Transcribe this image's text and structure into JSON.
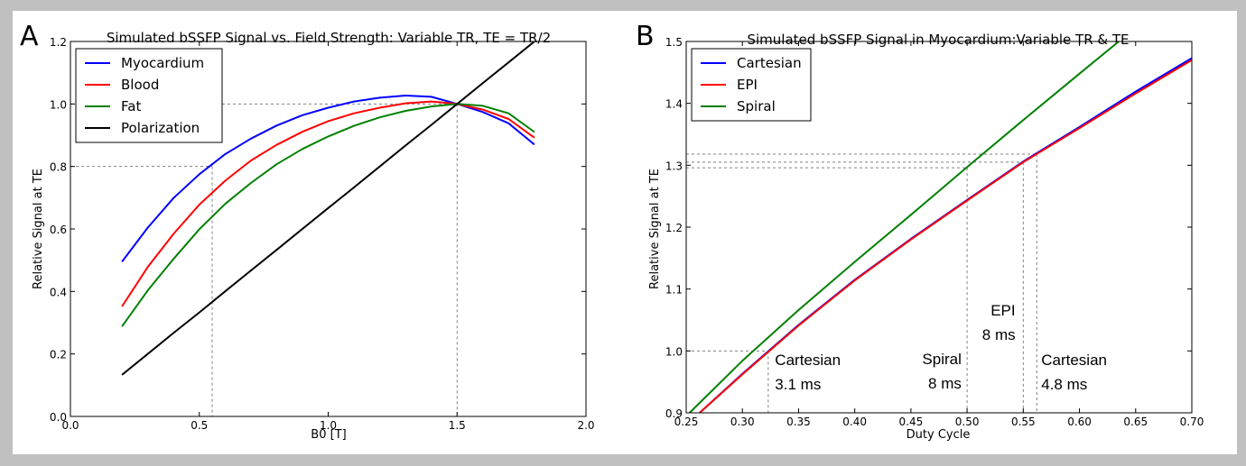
{
  "chart_data": [
    {
      "panel": "A",
      "type": "line",
      "title": "Simulated bSSFP Signal vs. Field Strength: Variable TR, TE = TR/2",
      "xlabel": "B0 [T]",
      "ylabel": "Relative Signal at TE",
      "xlim": [
        0.0,
        2.0
      ],
      "ylim": [
        0.0,
        1.2
      ],
      "xticks": [
        "0.0",
        "0.5",
        "1.0",
        "1.5",
        "2.0"
      ],
      "yticks": [
        "0.0",
        "0.2",
        "0.4",
        "0.6",
        "0.8",
        "1.0",
        "1.2"
      ],
      "legend_position": "top-left",
      "x": [
        0.2,
        0.3,
        0.4,
        0.5,
        0.6,
        0.7,
        0.8,
        0.9,
        1.0,
        1.1,
        1.2,
        1.3,
        1.4,
        1.5,
        1.6,
        1.7,
        1.8
      ],
      "series": [
        {
          "name": "Myocardium",
          "color": "#0000ff",
          "values": [
            0.495,
            0.604,
            0.699,
            0.775,
            0.839,
            0.889,
            0.931,
            0.964,
            0.988,
            1.008,
            1.02,
            1.027,
            1.023,
            1.0,
            0.974,
            0.938,
            0.87
          ]
        },
        {
          "name": "Blood",
          "color": "#ff0000",
          "values": [
            0.352,
            0.478,
            0.584,
            0.678,
            0.754,
            0.819,
            0.869,
            0.911,
            0.945,
            0.97,
            0.988,
            1.002,
            1.008,
            1.0,
            0.982,
            0.952,
            0.892
          ]
        },
        {
          "name": "Fat",
          "color": "#008000",
          "values": [
            0.288,
            0.403,
            0.504,
            0.599,
            0.68,
            0.747,
            0.807,
            0.856,
            0.896,
            0.93,
            0.957,
            0.978,
            0.992,
            1.0,
            0.994,
            0.97,
            0.91
          ]
        },
        {
          "name": "Polarization",
          "color": "#000000",
          "values": [
            0.133,
            0.2,
            0.267,
            0.333,
            0.4,
            0.467,
            0.533,
            0.6,
            0.667,
            0.733,
            0.8,
            0.867,
            0.933,
            1.0,
            1.067,
            1.133,
            1.2
          ]
        }
      ],
      "reference_lines": [
        {
          "x": 0.55,
          "y": 0.8
        },
        {
          "x": 1.5,
          "y": 1.0
        }
      ]
    },
    {
      "panel": "B",
      "type": "line",
      "title": "Simulated bSSFP Signal in Myocardium:Variable TR & TE",
      "xlabel": "Duty Cycle",
      "ylabel": "Relative Signal at TE",
      "xlim": [
        0.25,
        0.7
      ],
      "ylim": [
        0.9,
        1.5
      ],
      "xticks": [
        "0.25",
        "0.30",
        "0.35",
        "0.40",
        "0.45",
        "0.50",
        "0.55",
        "0.60",
        "0.65",
        "0.70"
      ],
      "yticks": [
        "0.9",
        "1.0",
        "1.1",
        "1.2",
        "1.3",
        "1.4",
        "1.5"
      ],
      "legend_position": "top-left",
      "series": [
        {
          "name": "Cartesian",
          "color": "#0000ff",
          "x": [
            0.262,
            0.3,
            0.35,
            0.4,
            0.45,
            0.5,
            0.55,
            0.6,
            0.65,
            0.7
          ],
          "values": [
            0.9,
            0.963,
            1.042,
            1.115,
            1.181,
            1.244,
            1.306,
            1.362,
            1.419,
            1.473
          ]
        },
        {
          "name": "EPI",
          "color": "#ff0000",
          "x": [
            0.262,
            0.3,
            0.35,
            0.4,
            0.45,
            0.5,
            0.55,
            0.6,
            0.65,
            0.7
          ],
          "values": [
            0.9,
            0.962,
            1.041,
            1.114,
            1.18,
            1.243,
            1.305,
            1.36,
            1.416,
            1.47
          ]
        },
        {
          "name": "Spiral",
          "color": "#008000",
          "x": [
            0.253,
            0.3,
            0.35,
            0.4,
            0.45,
            0.5,
            0.55,
            0.6,
            0.635
          ],
          "values": [
            0.9,
            0.984,
            1.066,
            1.144,
            1.22,
            1.297,
            1.373,
            1.448,
            1.5
          ]
        }
      ],
      "reference_lines": [
        {
          "x": 0.323,
          "y": 1.0
        },
        {
          "x": 0.5,
          "y": 1.296
        },
        {
          "x": 0.55,
          "y": 1.305
        },
        {
          "x": 0.562,
          "y": 1.318
        }
      ],
      "annotations": [
        {
          "lines": [
            "Cartesian",
            "3.1 ms"
          ],
          "x": 0.329,
          "y": 0.977,
          "align": "start"
        },
        {
          "lines": [
            "Spiral",
            "8 ms"
          ],
          "x": 0.495,
          "y": 0.979,
          "align": "end"
        },
        {
          "lines": [
            "EPI",
            "8 ms"
          ],
          "x": 0.543,
          "y": 1.057,
          "align": "end"
        },
        {
          "lines": [
            "Cartesian",
            "4.8 ms"
          ],
          "x": 0.566,
          "y": 0.977,
          "align": "start"
        }
      ]
    }
  ],
  "panel_labels": [
    "A",
    "B"
  ]
}
